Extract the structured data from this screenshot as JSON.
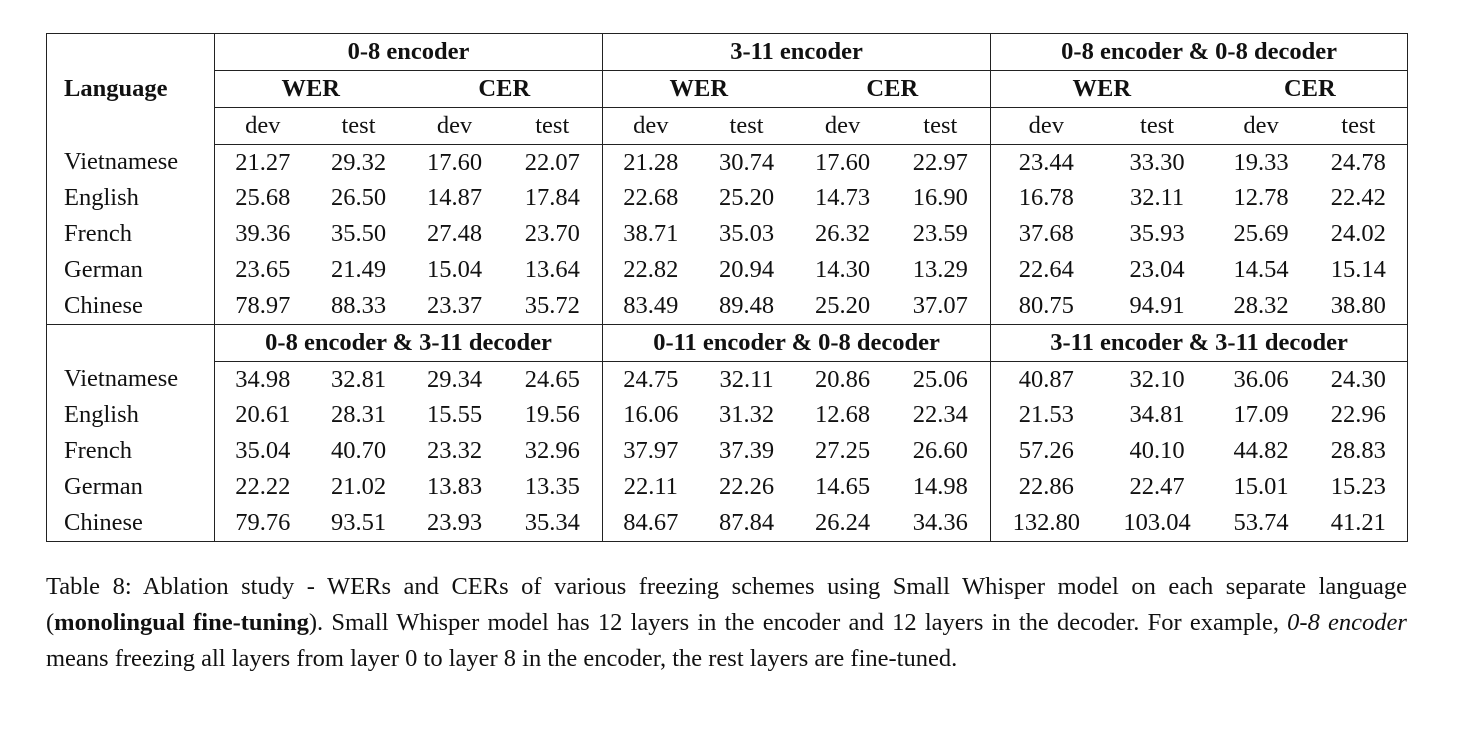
{
  "table": {
    "language_header": "Language",
    "metric_labels": [
      "WER",
      "CER"
    ],
    "split_labels": [
      "dev",
      "test",
      "dev",
      "test"
    ],
    "block1": {
      "groups": [
        "0-8 encoder",
        "3-11 encoder",
        "0-8 encoder & 0-8 decoder"
      ],
      "rows": [
        {
          "language": "Vietnamese",
          "values": [
            "21.27",
            "29.32",
            "17.60",
            "22.07",
            "21.28",
            "30.74",
            "17.60",
            "22.97",
            "23.44",
            "33.30",
            "19.33",
            "24.78"
          ]
        },
        {
          "language": "English",
          "values": [
            "25.68",
            "26.50",
            "14.87",
            "17.84",
            "22.68",
            "25.20",
            "14.73",
            "16.90",
            "16.78",
            "32.11",
            "12.78",
            "22.42"
          ]
        },
        {
          "language": "French",
          "values": [
            "39.36",
            "35.50",
            "27.48",
            "23.70",
            "38.71",
            "35.03",
            "26.32",
            "23.59",
            "37.68",
            "35.93",
            "25.69",
            "24.02"
          ]
        },
        {
          "language": "German",
          "values": [
            "23.65",
            "21.49",
            "15.04",
            "13.64",
            "22.82",
            "20.94",
            "14.30",
            "13.29",
            "22.64",
            "23.04",
            "14.54",
            "15.14"
          ]
        },
        {
          "language": "Chinese",
          "values": [
            "78.97",
            "88.33",
            "23.37",
            "35.72",
            "83.49",
            "89.48",
            "25.20",
            "37.07",
            "80.75",
            "94.91",
            "28.32",
            "38.80"
          ]
        }
      ]
    },
    "block2": {
      "groups": [
        "0-8 encoder & 3-11 decoder",
        "0-11 encoder & 0-8 decoder",
        "3-11 encoder & 3-11 decoder"
      ],
      "rows": [
        {
          "language": "Vietnamese",
          "values": [
            "34.98",
            "32.81",
            "29.34",
            "24.65",
            "24.75",
            "32.11",
            "20.86",
            "25.06",
            "40.87",
            "32.10",
            "36.06",
            "24.30"
          ]
        },
        {
          "language": "English",
          "values": [
            "20.61",
            "28.31",
            "15.55",
            "19.56",
            "16.06",
            "31.32",
            "12.68",
            "22.34",
            "21.53",
            "34.81",
            "17.09",
            "22.96"
          ]
        },
        {
          "language": "French",
          "values": [
            "35.04",
            "40.70",
            "23.32",
            "32.96",
            "37.97",
            "37.39",
            "27.25",
            "26.60",
            "57.26",
            "40.10",
            "44.82",
            "28.83"
          ]
        },
        {
          "language": "German",
          "values": [
            "22.22",
            "21.02",
            "13.83",
            "13.35",
            "22.11",
            "22.26",
            "14.65",
            "14.98",
            "22.86",
            "22.47",
            "15.01",
            "15.23"
          ]
        },
        {
          "language": "Chinese",
          "values": [
            "79.76",
            "93.51",
            "23.93",
            "35.34",
            "84.67",
            "87.84",
            "26.24",
            "34.36",
            "132.80",
            "103.04",
            "53.74",
            "41.21"
          ]
        }
      ]
    }
  },
  "caption": {
    "part1": "Table 8: Ablation study - WERs and CERs of various freezing schemes using Small Whisper model on each separate language (",
    "bold": "monolingual fine-tuning",
    "part2": "). Small Whisper model has 12 layers in the encoder and 12 layers in the decoder. For example, ",
    "italic": "0-8 encoder",
    "part3": " means freezing all layers from layer 0 to layer 8 in the encoder, the rest layers are fine-tuned."
  }
}
